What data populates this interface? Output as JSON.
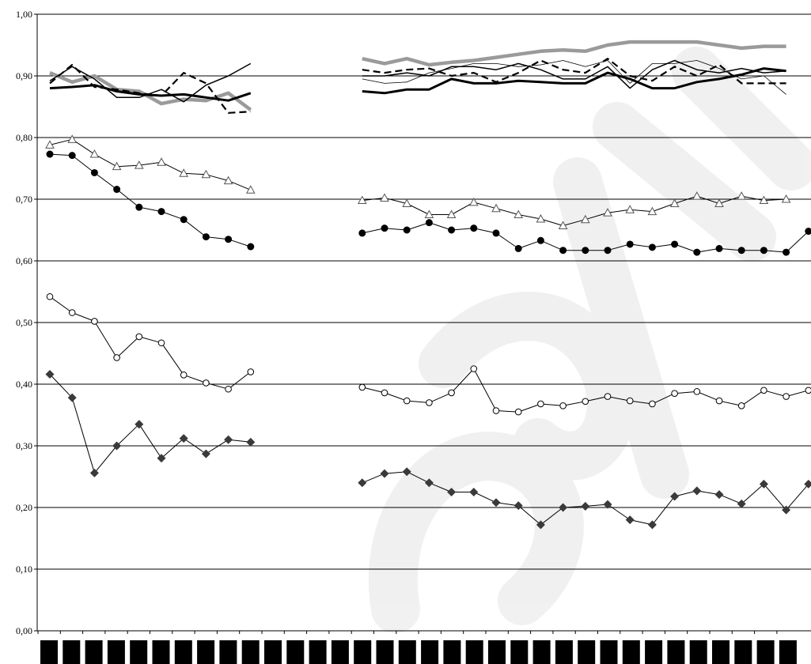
{
  "chart_data": {
    "type": "line",
    "ylim": [
      0,
      1
    ],
    "yticks": [
      "0,00",
      "0,10",
      "0,20",
      "0,30",
      "0,40",
      "0,50",
      "0,60",
      "0,70",
      "0,80",
      "0,90",
      "1,00"
    ],
    "ytick_values": [
      0,
      0.1,
      0.2,
      0.3,
      0.4,
      0.5,
      0.6,
      0.7,
      0.8,
      0.9,
      1.0
    ],
    "grid": true,
    "legend": "none",
    "x_categories": 34,
    "watermark": "book",
    "series": [
      {
        "style": "gray-thick",
        "color": "#9a9a9a",
        "segments": [
          {
            "x": [
              0,
              1,
              2,
              3,
              4,
              5,
              6,
              7,
              8,
              9
            ],
            "y": [
              0.905,
              0.89,
              0.9,
              0.878,
              0.875,
              0.855,
              0.862,
              0.86,
              0.872,
              0.845
            ]
          },
          {
            "x": [
              14,
              15,
              16,
              17,
              18,
              19,
              20,
              21,
              22,
              23,
              24,
              25,
              26,
              27,
              28,
              29,
              30,
              31,
              32,
              33
            ],
            "y": [
              0.928,
              0.92,
              0.928,
              0.918,
              0.922,
              0.925,
              0.93,
              0.935,
              0.94,
              0.942,
              0.94,
              0.95,
              0.955,
              0.955,
              0.955,
              0.955,
              0.95,
              0.945,
              0.948,
              0.948
            ]
          }
        ]
      },
      {
        "style": "black-thick",
        "color": "#000000",
        "segments": [
          {
            "x": [
              0,
              1,
              2,
              3,
              4,
              5,
              6,
              7,
              8,
              9
            ],
            "y": [
              0.88,
              0.882,
              0.885,
              0.875,
              0.87,
              0.868,
              0.87,
              0.865,
              0.86,
              0.872
            ]
          },
          {
            "x": [
              14,
              15,
              16,
              17,
              18,
              19,
              20,
              21,
              22,
              23,
              24,
              25,
              26,
              27,
              28,
              29,
              30,
              31,
              32,
              33
            ],
            "y": [
              0.875,
              0.872,
              0.878,
              0.878,
              0.895,
              0.888,
              0.888,
              0.892,
              0.89,
              0.888,
              0.888,
              0.905,
              0.895,
              0.88,
              0.88,
              0.89,
              0.895,
              0.902,
              0.912,
              0.908
            ]
          }
        ]
      },
      {
        "style": "black-dashed",
        "color": "#000000",
        "segments": [
          {
            "x": [
              0,
              1,
              2,
              3,
              4,
              5,
              6,
              7,
              8,
              9
            ],
            "y": [
              0.888,
              0.918,
              0.882,
              0.878,
              0.872,
              0.868,
              0.905,
              0.888,
              0.84,
              0.842
            ]
          },
          {
            "x": [
              14,
              15,
              16,
              17,
              18,
              19,
              20,
              21,
              22,
              23,
              24,
              25,
              26,
              27,
              28,
              29,
              30,
              31,
              32,
              33
            ],
            "y": [
              0.91,
              0.905,
              0.91,
              0.912,
              0.9,
              0.905,
              0.89,
              0.905,
              0.925,
              0.91,
              0.905,
              0.928,
              0.9,
              0.892,
              0.915,
              0.9,
              0.918,
              0.888,
              0.888,
              0.888
            ]
          }
        ]
      },
      {
        "style": "black-thin-a",
        "color": "#000000",
        "segments": [
          {
            "x": [
              0,
              1,
              2,
              3,
              4,
              5,
              6,
              7,
              8,
              9
            ],
            "y": [
              0.892,
              0.915,
              0.895,
              0.865,
              0.865,
              0.878,
              0.858,
              0.885,
              0.9,
              0.92
            ]
          },
          {
            "x": [
              14,
              15,
              16,
              17,
              18,
              19,
              20,
              21,
              22,
              23,
              24,
              25,
              26,
              27,
              28,
              29,
              30,
              31,
              32,
              33
            ],
            "y": [
              0.9,
              0.9,
              0.905,
              0.9,
              0.915,
              0.915,
              0.91,
              0.92,
              0.91,
              0.895,
              0.895,
              0.915,
              0.88,
              0.91,
              0.925,
              0.91,
              0.905,
              0.912,
              0.905,
              0.908
            ]
          }
        ]
      },
      {
        "style": "black-thin-b",
        "color": "#000000",
        "segments": [
          {
            "x": [
              14,
              15,
              16,
              17,
              18,
              19,
              20,
              21,
              22,
              23,
              24,
              25,
              26,
              27,
              28,
              29,
              30,
              31,
              32,
              33
            ],
            "y": [
              0.895,
              0.888,
              0.89,
              0.905,
              0.912,
              0.92,
              0.92,
              0.915,
              0.918,
              0.925,
              0.915,
              0.925,
              0.888,
              0.92,
              0.92,
              0.925,
              0.912,
              0.895,
              0.9,
              0.87
            ]
          }
        ]
      },
      {
        "style": "open-triangle",
        "color": "#000000",
        "marker": "triangle-open",
        "segments": [
          {
            "x": [
              0,
              1,
              2,
              3,
              4,
              5,
              6,
              7,
              8,
              9
            ],
            "y": [
              0.788,
              0.797,
              0.773,
              0.753,
              0.755,
              0.76,
              0.742,
              0.74,
              0.73,
              0.715
            ]
          },
          {
            "x": [
              14,
              15,
              16,
              17,
              18,
              19,
              20,
              21,
              22,
              23,
              24,
              25,
              26,
              27,
              28,
              29,
              30,
              31,
              32,
              33
            ],
            "y": [
              0.698,
              0.702,
              0.693,
              0.675,
              0.675,
              0.695,
              0.685,
              0.675,
              0.668,
              0.657,
              0.667,
              0.678,
              0.683,
              0.68,
              0.693,
              0.705,
              0.693,
              0.705,
              0.698,
              0.7
            ]
          }
        ]
      },
      {
        "style": "filled-circle",
        "color": "#000000",
        "marker": "circle-filled",
        "segments": [
          {
            "x": [
              0,
              1,
              2,
              3,
              4,
              5,
              6,
              7,
              8,
              9
            ],
            "y": [
              0.773,
              0.771,
              0.743,
              0.716,
              0.687,
              0.68,
              0.667,
              0.639,
              0.635,
              0.623
            ]
          },
          {
            "x": [
              14,
              15,
              16,
              17,
              18,
              19,
              20,
              21,
              22,
              23,
              24,
              25,
              26,
              27,
              28,
              29,
              30,
              31,
              32,
              33,
              34
            ],
            "y": [
              0.645,
              0.653,
              0.65,
              0.662,
              0.65,
              0.653,
              0.645,
              0.62,
              0.633,
              0.617,
              0.617,
              0.617,
              0.627,
              0.622,
              0.627,
              0.614,
              0.62,
              0.617,
              0.617,
              0.614,
              0.648
            ]
          }
        ]
      },
      {
        "style": "open-circle",
        "color": "#000000",
        "marker": "circle-open",
        "segments": [
          {
            "x": [
              0,
              1,
              2,
              3,
              4,
              5,
              6,
              7,
              8,
              9
            ],
            "y": [
              0.542,
              0.516,
              0.502,
              0.443,
              0.477,
              0.467,
              0.415,
              0.402,
              0.392,
              0.42
            ]
          },
          {
            "x": [
              14,
              15,
              16,
              17,
              18,
              19,
              20,
              21,
              22,
              23,
              24,
              25,
              26,
              27,
              28,
              29,
              30,
              31,
              32,
              33,
              34
            ],
            "y": [
              0.395,
              0.386,
              0.373,
              0.37,
              0.386,
              0.425,
              0.357,
              0.355,
              0.368,
              0.365,
              0.372,
              0.38,
              0.373,
              0.368,
              0.385,
              0.388,
              0.373,
              0.365,
              0.39,
              0.38,
              0.39
            ]
          }
        ]
      },
      {
        "style": "filled-diamond",
        "color": "#3a3a3a",
        "marker": "diamond-filled",
        "segments": [
          {
            "x": [
              0,
              1,
              2,
              3,
              4,
              5,
              6,
              7,
              8,
              9
            ],
            "y": [
              0.416,
              0.378,
              0.256,
              0.3,
              0.335,
              0.28,
              0.312,
              0.287,
              0.31,
              0.306
            ]
          },
          {
            "x": [
              14,
              15,
              16,
              17,
              18,
              19,
              20,
              21,
              22,
              23,
              24,
              25,
              26,
              27,
              28,
              29,
              30,
              31,
              32,
              33,
              34
            ],
            "y": [
              0.24,
              0.255,
              0.258,
              0.24,
              0.225,
              0.225,
              0.208,
              0.203,
              0.172,
              0.2,
              0.202,
              0.205,
              0.18,
              0.172,
              0.218,
              0.227,
              0.221,
              0.206,
              0.238,
              0.196,
              0.238
            ]
          }
        ]
      }
    ]
  }
}
